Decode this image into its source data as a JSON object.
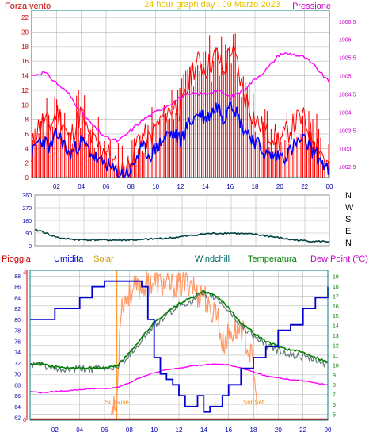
{
  "header": {
    "left": "Forza vento",
    "center": "24 hour graph day : 09 Marzo 2023",
    "right": "Pressione"
  },
  "colors": {
    "wind": "#ff0000",
    "gust_fill": "#f8b8b8",
    "speed": "#0000ff",
    "pressure": "#ff00ff",
    "grid": "#b8b8b8",
    "frame": "#008080",
    "axis_text": "#0000aa",
    "rain": "#ff0000",
    "humidity": "#0000cc",
    "solar": "#ff9966",
    "windchill": "#607878",
    "temperature": "#008000",
    "dewpoint": "#ff00ff",
    "direction": "#004040",
    "header_wind": "#cc0000",
    "header_center": "#e8c000",
    "header_right": "#cc00cc",
    "sun_label": "#ff8800"
  },
  "chart_data": [
    {
      "type": "line",
      "x_ticks": [
        "02",
        "04",
        "06",
        "08",
        "10",
        "12",
        "14",
        "16",
        "18",
        "20",
        "22",
        "00"
      ],
      "yleft_ticks": [
        "0",
        "2",
        "4",
        "6",
        "8",
        "10",
        "12",
        "14",
        "16",
        "18",
        "20",
        "22"
      ],
      "yleft_lim": [
        0,
        23
      ],
      "yright_ticks": [
        "1002,5",
        "1003",
        "1003,5",
        "1004",
        "1004,5",
        "1005",
        "1005,5",
        "1006",
        "1006,5"
      ],
      "yright_lim": [
        1002.2,
        1006.8
      ],
      "xlim": [
        0,
        24
      ],
      "series": [
        {
          "name": "Forza vento",
          "axis": "left",
          "x": [
            0,
            0.5,
            1,
            1.5,
            2,
            2.5,
            3,
            3.5,
            4,
            4.5,
            5,
            5.5,
            6,
            6.5,
            7,
            7.5,
            8,
            8.5,
            9,
            9.5,
            10,
            10.5,
            11,
            11.5,
            12,
            12.5,
            13,
            13.5,
            14,
            14.5,
            15,
            15.5,
            16,
            16.5,
            17,
            17.5,
            18,
            18.5,
            19,
            19.5,
            20,
            20.5,
            21,
            21.5,
            22,
            22.5,
            23,
            23.5,
            24
          ],
          "values": [
            4,
            7,
            8,
            7,
            9,
            8,
            5,
            7,
            9,
            6,
            5,
            4,
            4,
            2,
            1,
            1,
            2,
            5,
            6,
            5,
            7,
            8,
            9,
            10,
            9,
            12,
            15,
            16,
            15,
            16,
            17,
            14,
            18,
            16,
            12,
            10,
            8,
            7,
            6,
            6,
            5,
            6,
            7,
            8,
            8,
            6,
            5,
            3,
            1
          ]
        },
        {
          "name": "",
          "axis": "left",
          "x": [
            0,
            0.5,
            1,
            1.5,
            2,
            2.5,
            3,
            3.5,
            4,
            4.5,
            5,
            5.5,
            6,
            6.5,
            7,
            7.5,
            8,
            8.5,
            9,
            9.5,
            10,
            10.5,
            11,
            11.5,
            12,
            12.5,
            13,
            13.5,
            14,
            14.5,
            15,
            15.5,
            16,
            16.5,
            17,
            17.5,
            18,
            18.5,
            19,
            19.5,
            20,
            20.5,
            21,
            21.5,
            22,
            22.5,
            23,
            23.5,
            24
          ],
          "values": [
            3,
            5,
            5,
            4,
            6,
            5,
            3,
            4,
            5,
            4,
            3,
            2,
            2,
            1,
            0.5,
            0.5,
            1,
            3,
            4,
            3,
            4,
            5,
            6,
            6,
            5,
            7,
            8,
            9,
            8,
            9,
            10,
            8,
            11,
            9,
            7,
            6,
            5,
            4,
            3,
            3,
            3,
            3,
            4,
            5,
            5,
            4,
            3,
            2,
            0.5
          ]
        },
        {
          "name": "Pressione",
          "axis": "right",
          "x": [
            0,
            1,
            2,
            3,
            4,
            5,
            6,
            7,
            8,
            9,
            10,
            11,
            12,
            13,
            14,
            15,
            16,
            17,
            18,
            19,
            20,
            21,
            22,
            23,
            24
          ],
          "values": [
            1005.0,
            1005.1,
            1004.8,
            1004.5,
            1004.0,
            1003.6,
            1003.3,
            1003.2,
            1003.5,
            1003.8,
            1004.0,
            1004.2,
            1004.4,
            1004.5,
            1004.5,
            1004.6,
            1004.4,
            1004.6,
            1004.9,
            1005.2,
            1005.6,
            1005.6,
            1005.5,
            1005.2,
            1004.8
          ]
        }
      ]
    },
    {
      "type": "line",
      "title": "",
      "y_ticks": [
        "360",
        "270",
        "180",
        "90",
        "0"
      ],
      "ylim": [
        0,
        360
      ],
      "side_labels": [
        "N",
        "W",
        "S",
        "E",
        "N"
      ],
      "series": [
        {
          "name": "",
          "x": [
            0,
            0.5,
            1,
            2,
            3,
            4,
            5,
            6,
            7,
            8,
            8.5,
            9,
            10,
            11,
            12,
            13,
            14,
            15,
            16,
            17,
            18,
            19,
            20,
            21,
            22,
            23,
            24
          ],
          "values": [
            110,
            105,
            85,
            55,
            45,
            42,
            42,
            40,
            40,
            42,
            40,
            45,
            50,
            55,
            65,
            75,
            85,
            88,
            90,
            85,
            80,
            68,
            55,
            42,
            35,
            30,
            30
          ]
        }
      ]
    },
    {
      "type": "line",
      "legend": [
        "Pioggia",
        "Umidita",
        "Solar",
        "Windchill",
        "Temperatura",
        "Dew Point (°C)"
      ],
      "yleft_ticks": [
        "62",
        "64",
        "66",
        "68",
        "70",
        "72",
        "74",
        "76",
        "78",
        "80",
        "82",
        "84",
        "86",
        "88"
      ],
      "yleft_lim": [
        61.5,
        89
      ],
      "yright_ticks": [
        "5",
        "6",
        "7",
        "8",
        "9",
        "10",
        "11",
        "12",
        "13",
        "14",
        "15",
        "16",
        "17",
        "18",
        "19"
      ],
      "yright_lim": [
        4.4,
        19.6
      ],
      "xlim": [
        0,
        24
      ],
      "annotations": [
        "SunRise",
        "SunSet"
      ],
      "annotation_x": [
        7.0,
        18.0
      ],
      "series": [
        {
          "name": "Pioggia",
          "axis": "right",
          "x": [
            0,
            24
          ],
          "values": [
            4.5,
            4.5
          ]
        },
        {
          "name": "Umidita",
          "axis": "left",
          "x": [
            0,
            1,
            2,
            3,
            4,
            5,
            6,
            7,
            8,
            9,
            9.5,
            10,
            10.5,
            11,
            11.5,
            12,
            12.5,
            13,
            13.5,
            14,
            14.5,
            15,
            15.5,
            16,
            17,
            18,
            19,
            20,
            21,
            22,
            23,
            24
          ],
          "values": [
            80,
            80,
            82,
            82,
            84,
            86,
            87,
            87,
            87,
            86,
            80,
            73,
            70,
            69,
            68,
            66,
            64,
            64,
            66,
            63,
            64,
            64,
            66,
            68,
            71,
            73,
            75,
            78,
            79,
            82,
            84,
            86
          ]
        },
        {
          "name": "Solar",
          "axis": "right",
          "x": [
            6.5,
            7,
            7.3,
            7.8,
            8.2,
            9,
            10,
            11,
            12,
            13,
            13.5,
            14,
            14.5,
            15,
            15.5,
            16,
            17,
            17.5,
            18,
            18.3
          ],
          "values": [
            5,
            6,
            16,
            17,
            17.5,
            18,
            18.5,
            18,
            18,
            18.5,
            17,
            17.5,
            15,
            16,
            12,
            13,
            14,
            12,
            10,
            5
          ]
        },
        {
          "name": "Windchill",
          "axis": "right",
          "x": [
            0,
            1,
            2,
            3,
            4,
            5,
            6,
            7,
            8,
            9,
            10,
            11,
            12,
            13,
            14,
            15,
            16,
            17,
            18,
            19,
            20,
            21,
            22,
            23,
            24
          ],
          "values": [
            10,
            10,
            9.5,
            9.5,
            9.6,
            9.6,
            9.6,
            9.8,
            11,
            12.5,
            14,
            15,
            16,
            16.5,
            17.2,
            16.8,
            15.5,
            14,
            13,
            12,
            11.5,
            11,
            10.8,
            10.5,
            10
          ]
        },
        {
          "name": "Temperatura",
          "axis": "right",
          "x": [
            0,
            1,
            2,
            3,
            4,
            5,
            6,
            7,
            8,
            9,
            10,
            11,
            12,
            13,
            14,
            15,
            16,
            17,
            18,
            19,
            20,
            21,
            22,
            23,
            24
          ],
          "values": [
            10.2,
            10.1,
            9.8,
            9.7,
            9.7,
            9.7,
            9.7,
            9.9,
            11.2,
            12.8,
            14.3,
            15.3,
            16.2,
            16.8,
            17.5,
            17,
            15.8,
            14.3,
            13.3,
            12.4,
            11.9,
            11.5,
            11.3,
            10.8,
            10.3
          ]
        },
        {
          "name": "Dew Point (°C)",
          "axis": "right",
          "x": [
            0,
            1,
            2,
            3,
            4,
            5,
            6,
            7,
            8,
            9,
            10,
            11,
            12,
            13,
            14,
            15,
            16,
            17,
            18,
            19,
            20,
            21,
            22,
            23,
            24
          ],
          "values": [
            7.3,
            7.2,
            7.3,
            7.4,
            7.5,
            7.6,
            7.6,
            7.7,
            8.2,
            8.8,
            9.2,
            9.5,
            9.7,
            9.9,
            10.0,
            10.1,
            10.0,
            9.7,
            9.3,
            8.9,
            8.7,
            8.5,
            8.4,
            8.2,
            8.0
          ]
        }
      ]
    }
  ]
}
